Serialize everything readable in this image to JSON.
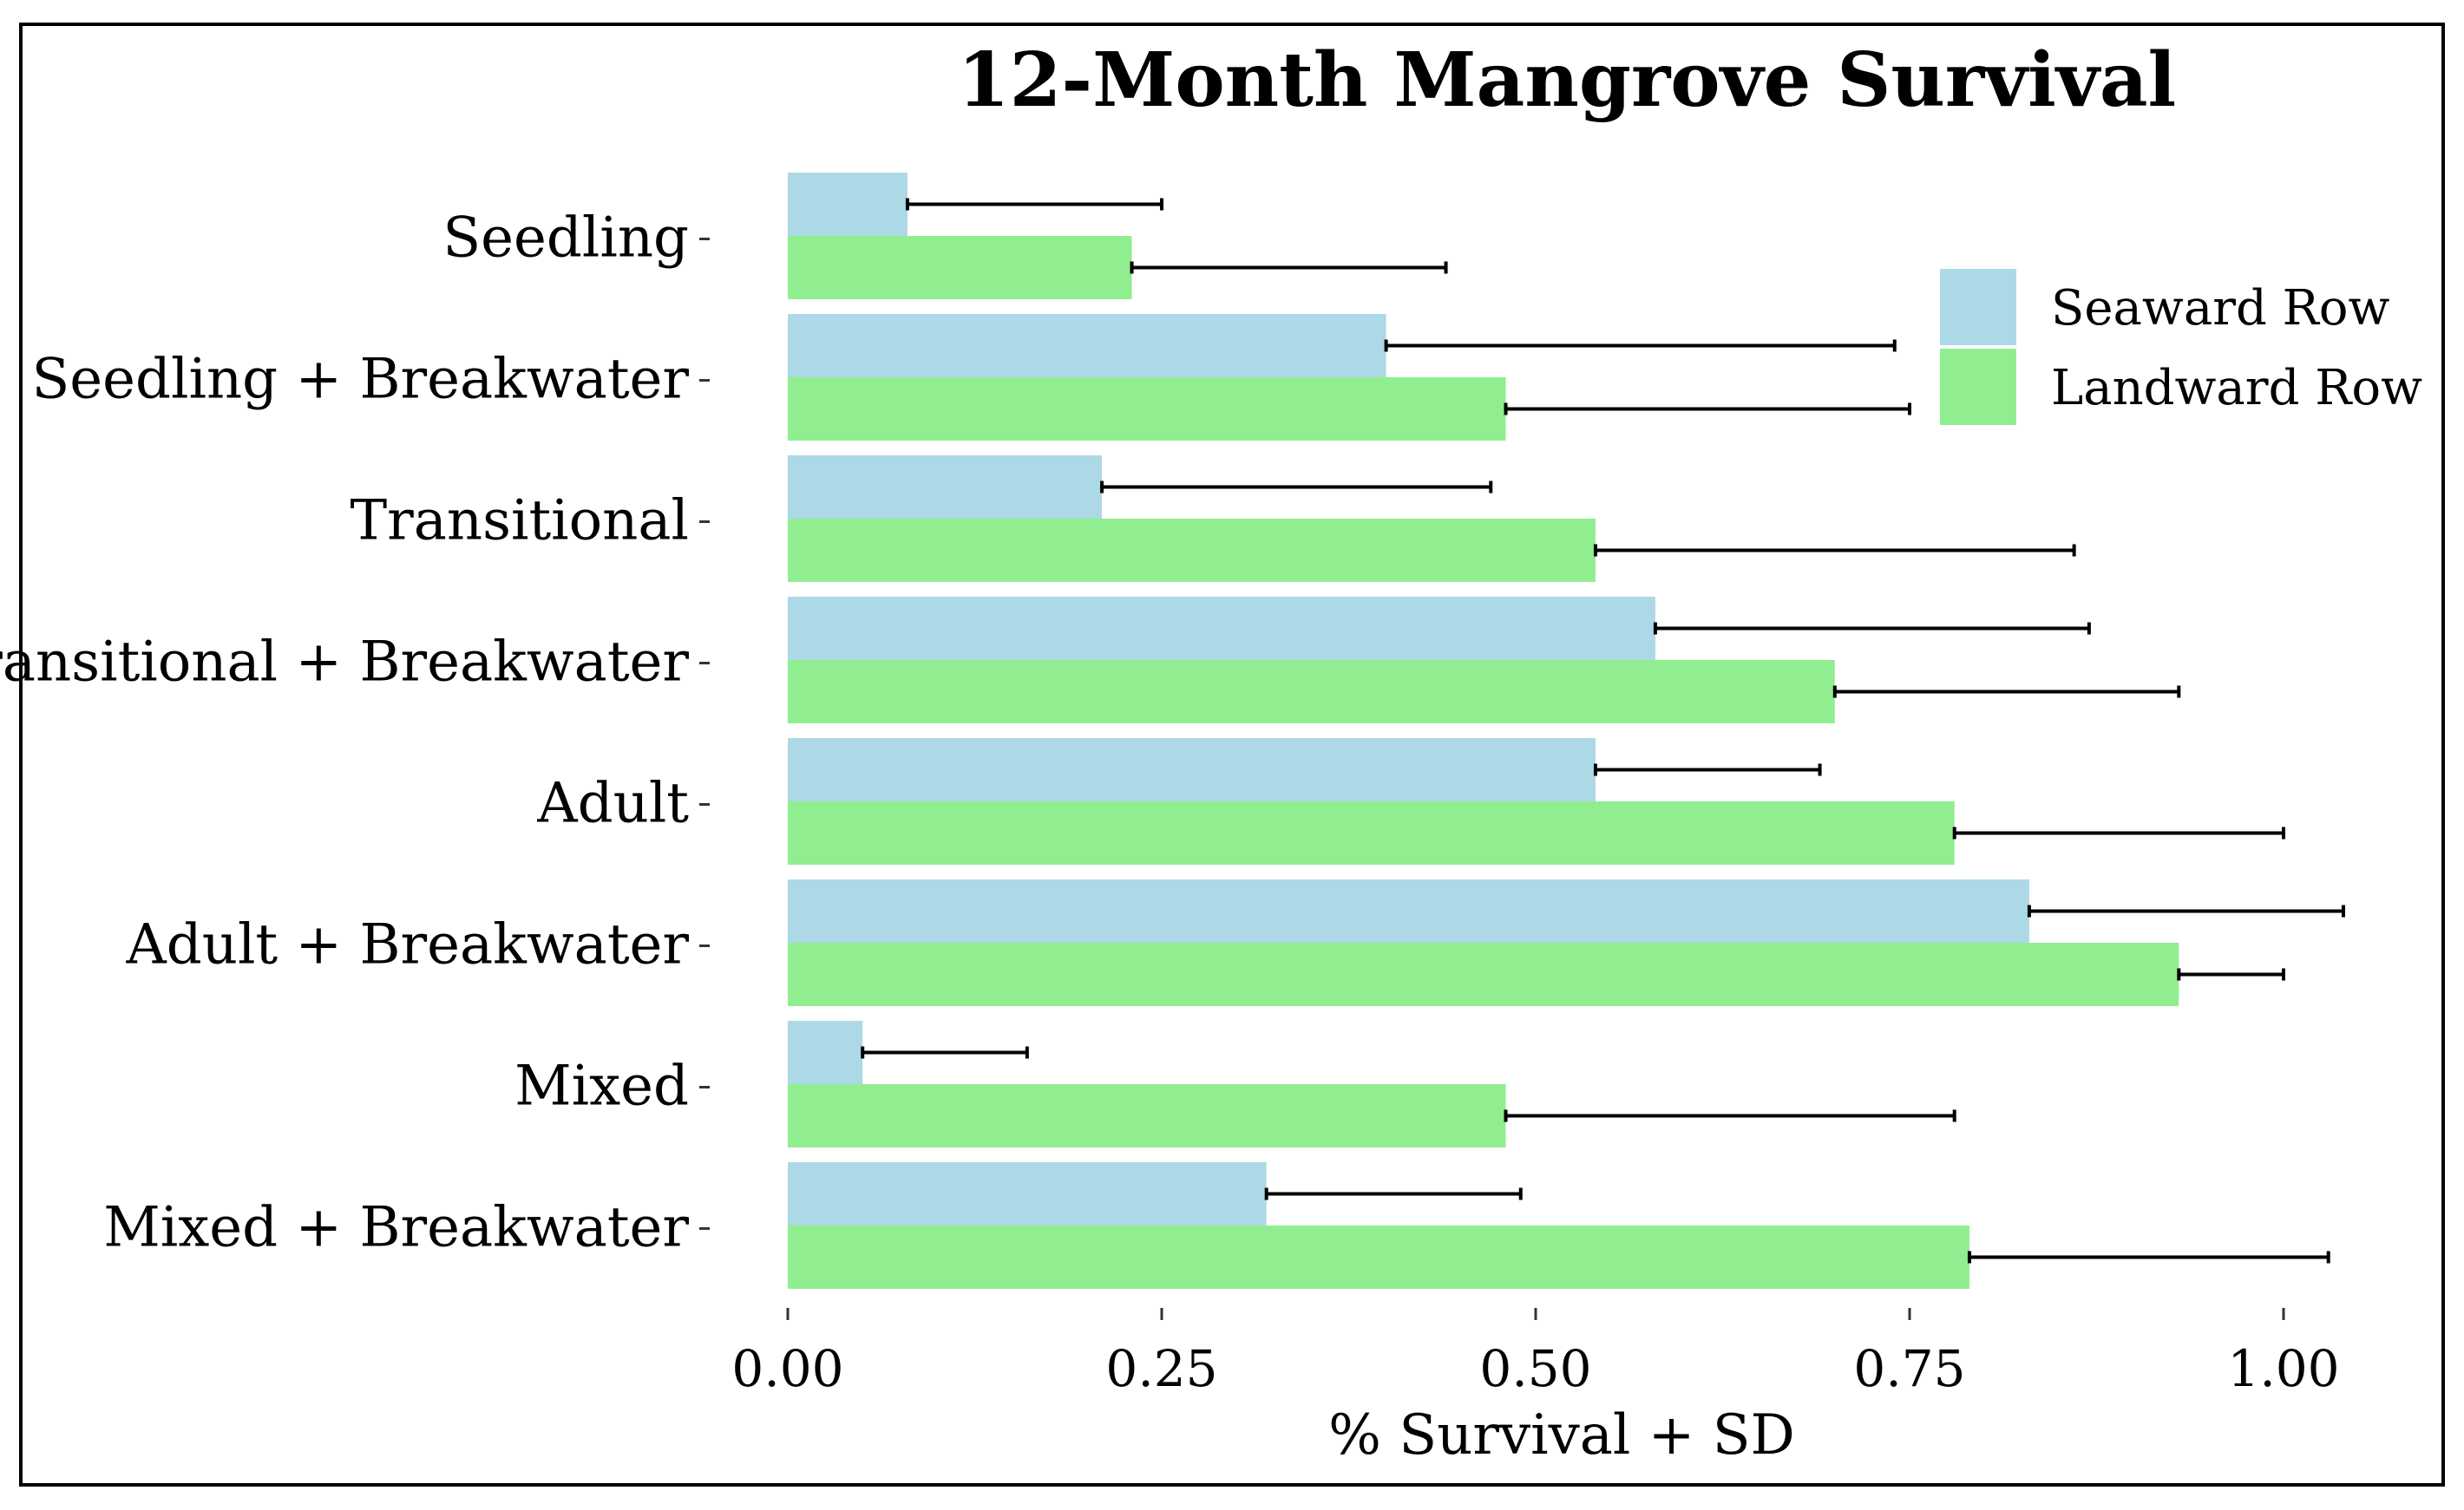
{
  "chart_data": {
    "type": "bar",
    "orientation": "horizontal",
    "title": "12-Month Mangrove Survival",
    "xlabel": "% Survival + SD",
    "ylabel": "",
    "xlim": [
      0,
      1.05
    ],
    "xticks": [
      0.0,
      0.25,
      0.5,
      0.75,
      1.0
    ],
    "xtick_labels": [
      "0.00",
      "0.25",
      "0.50",
      "0.75",
      "1.00"
    ],
    "categories": [
      "Seedling",
      "Seedling + Breakwater",
      "Transitional",
      "Transitional + Breakwater",
      "Adult",
      "Adult + Breakwater",
      "Mixed",
      "Mixed + Breakwater"
    ],
    "series": [
      {
        "name": "Seaward Row",
        "color": "#add8e6",
        "values": [
          0.08,
          0.4,
          0.21,
          0.58,
          0.54,
          0.83,
          0.05,
          0.32
        ],
        "error_upper": [
          0.25,
          0.74,
          0.47,
          0.87,
          0.69,
          1.04,
          0.16,
          0.49
        ]
      },
      {
        "name": "Landward Row",
        "color": "#90ee90",
        "values": [
          0.23,
          0.48,
          0.54,
          0.7,
          0.78,
          0.93,
          0.48,
          0.79
        ],
        "error_upper": [
          0.44,
          0.75,
          0.86,
          0.93,
          1.0,
          1.0,
          0.78,
          1.03
        ]
      }
    ],
    "legend_position": "top-right",
    "grid": false
  }
}
